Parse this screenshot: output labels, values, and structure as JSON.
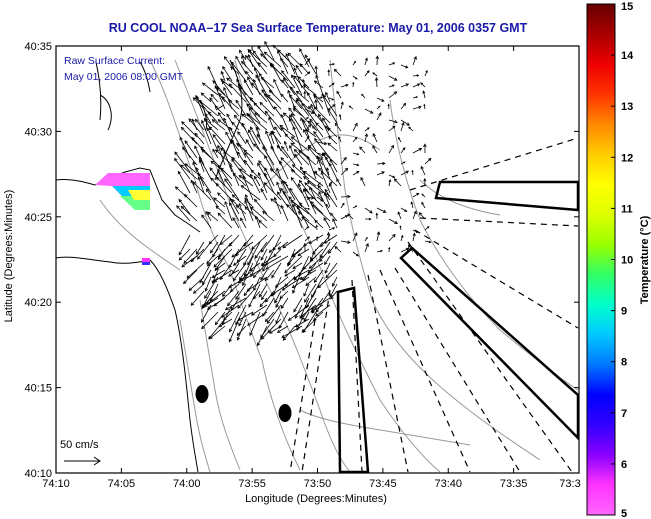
{
  "title": "RU COOL  NOAA–17  Sea Surface Temperature:  May 01, 2006 0357 GMT",
  "annotation": {
    "line1": "Raw Surface Current:",
    "line2": "May 01, 2006 08:00 GMT"
  },
  "scale_label": "50 cm/s",
  "axes": {
    "xlabel": "Longitude (Degrees:Minutes)",
    "ylabel": "Latitude (Degrees:Minutes)",
    "xticks": [
      "74:10",
      "74:05",
      "74:00",
      "73:55",
      "73:50",
      "73:45",
      "73:40",
      "73:35",
      "73:3"
    ],
    "yticks": [
      "40:35",
      "40:30",
      "40:25",
      "40:20",
      "40:15",
      "40:10"
    ]
  },
  "colorbar": {
    "label": "Temperature (°C)",
    "ticks": [
      "15",
      "14",
      "13",
      "12",
      "11",
      "10",
      "9",
      "8",
      "7",
      "6",
      "5"
    ],
    "range": [
      5,
      15
    ],
    "colors": [
      "#ff66ff",
      "#ff33ff",
      "#8800ff",
      "#3300ff",
      "#0000ff",
      "#0077ff",
      "#00c8ff",
      "#00ffcc",
      "#33ff66",
      "#99ff00",
      "#ddff00",
      "#ffff00",
      "#ffcc00",
      "#ff8800",
      "#ff3300",
      "#ee0000",
      "#aa0000",
      "#660000"
    ]
  },
  "colors": {
    "title": "#1a1aa8",
    "frame": "#000000",
    "contour": "#999999"
  }
}
